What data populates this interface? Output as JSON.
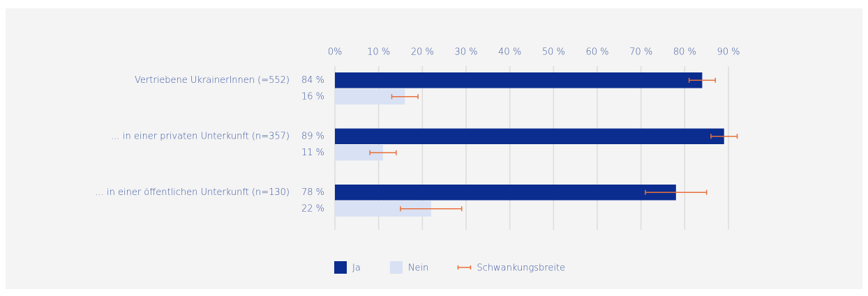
{
  "chart_data": {
    "type": "bar",
    "orientation": "horizontal",
    "categories": [
      "Vertriebene UkrainerInnen (=552)",
      "... in einer privaten Unterkunft (n=357)",
      "... in einer öffentlichen Unterkunft (n=130)"
    ],
    "series": [
      {
        "name": "Ja",
        "color": "#0b2d8f",
        "values": [
          84,
          89,
          78
        ],
        "value_labels": [
          "84 %",
          "89 %",
          "78 %"
        ],
        "errors": [
          3,
          3,
          7
        ]
      },
      {
        "name": "Nein",
        "color": "#d9e1f4",
        "values": [
          16,
          11,
          22
        ],
        "value_labels": [
          "16 %",
          "11 %",
          "22 %"
        ],
        "errors": [
          3,
          3,
          7
        ]
      }
    ],
    "error_label": "Schwankungsbreite",
    "error_color": "#e8703a",
    "xlim": [
      0,
      90
    ],
    "xticks": [
      {
        "value": 0,
        "label": "0%"
      },
      {
        "value": 10,
        "label": "10 %"
      },
      {
        "value": 20,
        "label": "20 %"
      },
      {
        "value": 30,
        "label": "30 %"
      },
      {
        "value": 40,
        "label": "40 %"
      },
      {
        "value": 50,
        "label": "50 %"
      },
      {
        "value": 60,
        "label": "60 %"
      },
      {
        "value": 70,
        "label": "70 %"
      },
      {
        "value": 80,
        "label": "80 %"
      },
      {
        "value": 90,
        "label": "90 %"
      }
    ],
    "grid": true
  }
}
